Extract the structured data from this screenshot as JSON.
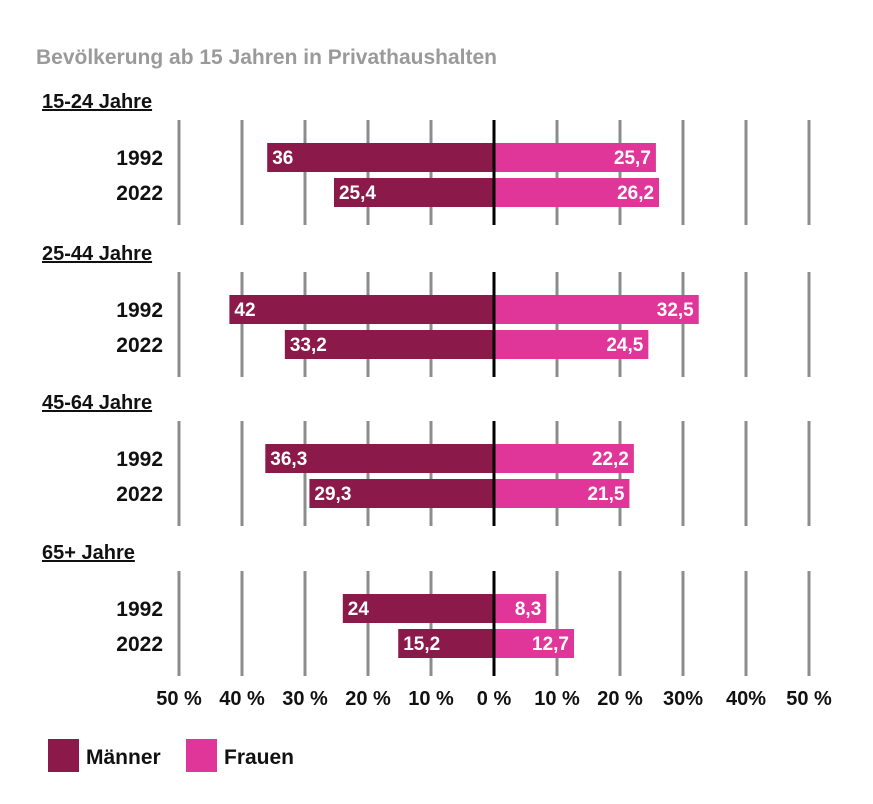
{
  "chart_data": {
    "type": "bar",
    "orientation": "horizontal-diverging",
    "title": "Bevölkerung ab 15 Jahren in Privathaushalten",
    "groups": [
      {
        "label": "15-24 Jahre",
        "rows": [
          {
            "year": "1992",
            "maenner": 36,
            "maenner_label": "36",
            "frauen": 25.7,
            "frauen_label": "25,7"
          },
          {
            "year": "2022",
            "maenner": 25.4,
            "maenner_label": "25,4",
            "frauen": 26.2,
            "frauen_label": "26,2"
          }
        ]
      },
      {
        "label": "25-44 Jahre",
        "rows": [
          {
            "year": "1992",
            "maenner": 42,
            "maenner_label": "42",
            "frauen": 32.5,
            "frauen_label": "32,5"
          },
          {
            "year": "2022",
            "maenner": 33.2,
            "maenner_label": "33,2",
            "frauen": 24.5,
            "frauen_label": "24,5"
          }
        ]
      },
      {
        "label": "45-64 Jahre",
        "rows": [
          {
            "year": "1992",
            "maenner": 36.3,
            "maenner_label": "36,3",
            "frauen": 22.2,
            "frauen_label": "22,2"
          },
          {
            "year": "2022",
            "maenner": 29.3,
            "maenner_label": "29,3",
            "frauen": 21.5,
            "frauen_label": "21,5"
          }
        ]
      },
      {
        "label": "65+ Jahre",
        "rows": [
          {
            "year": "1992",
            "maenner": 24,
            "maenner_label": "24",
            "frauen": 8.3,
            "frauen_label": "8,3"
          },
          {
            "year": "2022",
            "maenner": 15.2,
            "maenner_label": "15,2",
            "frauen": 12.7,
            "frauen_label": "12,7"
          }
        ]
      }
    ],
    "xlim": [
      -50,
      50
    ],
    "xticks": [
      {
        "value": -50,
        "label": "50 %"
      },
      {
        "value": -40,
        "label": "40 %"
      },
      {
        "value": -30,
        "label": "30 %"
      },
      {
        "value": -20,
        "label": "20 %"
      },
      {
        "value": -10,
        "label": "10 %"
      },
      {
        "value": 0,
        "label": "0 %"
      },
      {
        "value": 10,
        "label": "10 %"
      },
      {
        "value": 20,
        "label": "20 %"
      },
      {
        "value": 30,
        "label": "30%"
      },
      {
        "value": 40,
        "label": "40%"
      },
      {
        "value": 50,
        "label": "50 %"
      }
    ],
    "legend": [
      {
        "name": "Männer",
        "color": "#8b1a4a"
      },
      {
        "name": "Frauen",
        "color": "#e0369a"
      }
    ],
    "colors": {
      "title": "#9a9a9a",
      "grid": "#8c8c8c",
      "axis": "#000000"
    }
  }
}
